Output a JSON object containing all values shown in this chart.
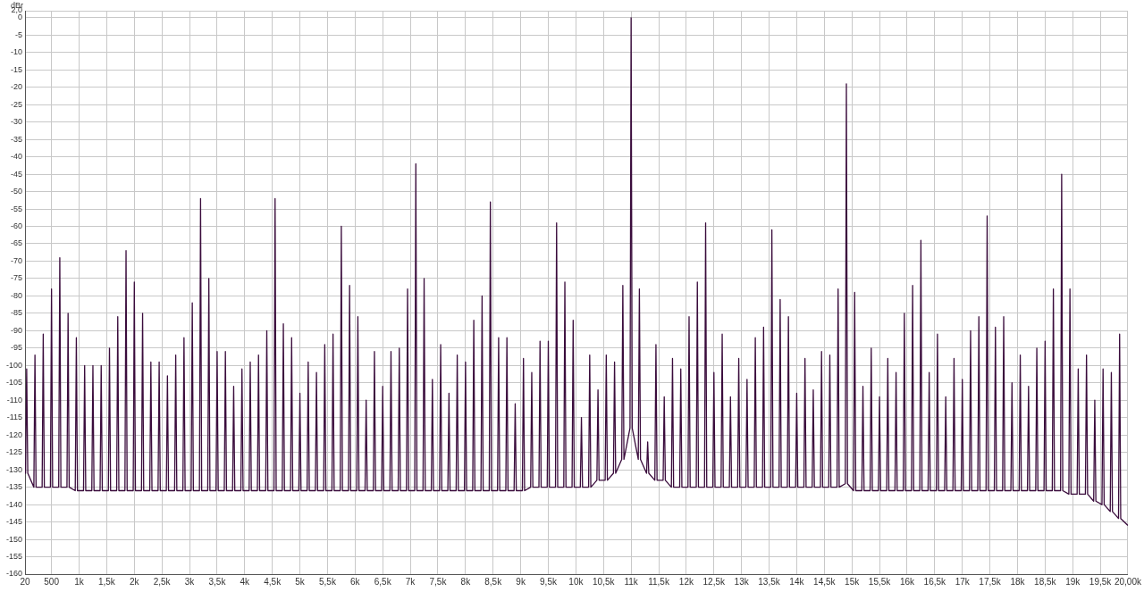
{
  "chart_data": {
    "type": "line",
    "ylabel": "dBr",
    "marker": "none",
    "grid": true,
    "legend": false,
    "xlim": [
      20,
      20000
    ],
    "ylim": [
      -160,
      2
    ],
    "xticks": [
      20,
      500,
      {
        "value": 1000,
        "label": "1k"
      },
      {
        "value": 1500,
        "label": "1,5k"
      },
      {
        "value": 2000,
        "label": "2k"
      },
      {
        "value": 2500,
        "label": "2,5k"
      },
      {
        "value": 3000,
        "label": "3k"
      },
      {
        "value": 3500,
        "label": "3,5k"
      },
      {
        "value": 4000,
        "label": "4k"
      },
      {
        "value": 4500,
        "label": "4,5k"
      },
      {
        "value": 5000,
        "label": "5k"
      },
      {
        "value": 5500,
        "label": "5,5k"
      },
      {
        "value": 6000,
        "label": "6k"
      },
      {
        "value": 6500,
        "label": "6,5k"
      },
      {
        "value": 7000,
        "label": "7k"
      },
      {
        "value": 7500,
        "label": "7,5k"
      },
      {
        "value": 8000,
        "label": "8k"
      },
      {
        "value": 8500,
        "label": "8,5k"
      },
      {
        "value": 9000,
        "label": "9k"
      },
      {
        "value": 9500,
        "label": "9,5k"
      },
      {
        "value": 10000,
        "label": "10k"
      },
      {
        "value": 10500,
        "label": "10,5k"
      },
      {
        "value": 11000,
        "label": "11k"
      },
      {
        "value": 11500,
        "label": "11,5k"
      },
      {
        "value": 12000,
        "label": "12k"
      },
      {
        "value": 12500,
        "label": "12,5k"
      },
      {
        "value": 13000,
        "label": "13k"
      },
      {
        "value": 13500,
        "label": "13,5k"
      },
      {
        "value": 14000,
        "label": "14k"
      },
      {
        "value": 14500,
        "label": "14,5k"
      },
      {
        "value": 15000,
        "label": "15k"
      },
      {
        "value": 15500,
        "label": "15,5k"
      },
      {
        "value": 16000,
        "label": "16k"
      },
      {
        "value": 16500,
        "label": "16,5k"
      },
      {
        "value": 17000,
        "label": "17k"
      },
      {
        "value": 17500,
        "label": "17,5k"
      },
      {
        "value": 18000,
        "label": "18k"
      },
      {
        "value": 18500,
        "label": "18,5k"
      },
      {
        "value": 19000,
        "label": "19k"
      },
      {
        "value": 19500,
        "label": "19,5k"
      },
      {
        "value": 20000,
        "label": "20,00k"
      }
    ],
    "yticks": [
      {
        "value": 2,
        "label": "2,0"
      },
      0,
      -5,
      -10,
      -15,
      -20,
      -25,
      -30,
      -35,
      -40,
      -45,
      -50,
      -55,
      -60,
      -65,
      -70,
      -75,
      -80,
      -85,
      -90,
      -95,
      -100,
      -105,
      -110,
      -115,
      -120,
      -125,
      -130,
      -135,
      -140,
      -145,
      -150,
      -155,
      -160
    ],
    "x": [
      20,
      30,
      50,
      70,
      180,
      200,
      220,
      330,
      350,
      370,
      480,
      500,
      520,
      630,
      650,
      670,
      780,
      800,
      820,
      930,
      950,
      970,
      1080,
      1100,
      1120,
      1230,
      1250,
      1270,
      1380,
      1400,
      1420,
      1530,
      1550,
      1570,
      1680,
      1700,
      1720,
      1830,
      1850,
      1870,
      1980,
      2000,
      2020,
      2130,
      2150,
      2170,
      2280,
      2300,
      2320,
      2430,
      2450,
      2470,
      2580,
      2600,
      2620,
      2730,
      2750,
      2770,
      2880,
      2900,
      2920,
      3030,
      3050,
      3070,
      3180,
      3200,
      3220,
      3330,
      3350,
      3370,
      3480,
      3500,
      3520,
      3630,
      3650,
      3670,
      3780,
      3800,
      3820,
      3930,
      3950,
      3970,
      4080,
      4100,
      4120,
      4230,
      4250,
      4270,
      4380,
      4400,
      4420,
      4530,
      4550,
      4570,
      4680,
      4700,
      4720,
      4830,
      4850,
      4870,
      4980,
      5000,
      5020,
      5130,
      5150,
      5170,
      5280,
      5300,
      5320,
      5430,
      5450,
      5470,
      5580,
      5600,
      5620,
      5730,
      5750,
      5770,
      5880,
      5900,
      5920,
      6030,
      6050,
      6070,
      6180,
      6200,
      6220,
      6330,
      6350,
      6370,
      6480,
      6500,
      6520,
      6630,
      6650,
      6670,
      6780,
      6800,
      6820,
      6930,
      6950,
      6970,
      7080,
      7100,
      7120,
      7230,
      7250,
      7270,
      7380,
      7400,
      7420,
      7530,
      7550,
      7570,
      7680,
      7700,
      7720,
      7830,
      7850,
      7870,
      7980,
      8000,
      8020,
      8130,
      8150,
      8170,
      8280,
      8300,
      8320,
      8430,
      8450,
      8470,
      8580,
      8600,
      8620,
      8730,
      8750,
      8770,
      8880,
      8900,
      8920,
      9030,
      9050,
      9070,
      9180,
      9200,
      9220,
      9330,
      9350,
      9370,
      9480,
      9500,
      9520,
      9630,
      9650,
      9670,
      9780,
      9800,
      9820,
      9930,
      9950,
      9970,
      10080,
      10100,
      10120,
      10230,
      10250,
      10270,
      10380,
      10400,
      10420,
      10530,
      10550,
      10570,
      10680,
      10700,
      10720,
      10830,
      10850,
      10870,
      10980,
      11000,
      11020,
      11130,
      11150,
      11170,
      11280,
      11300,
      11320,
      11430,
      11450,
      11470,
      11580,
      11600,
      11620,
      11730,
      11750,
      11770,
      11880,
      11900,
      11920,
      12030,
      12050,
      12070,
      12180,
      12200,
      12220,
      12330,
      12350,
      12370,
      12480,
      12500,
      12520,
      12630,
      12650,
      12670,
      12780,
      12800,
      12820,
      12930,
      12950,
      12970,
      13080,
      13100,
      13120,
      13230,
      13250,
      13270,
      13380,
      13400,
      13420,
      13530,
      13550,
      13570,
      13680,
      13700,
      13720,
      13830,
      13850,
      13870,
      13980,
      14000,
      14020,
      14130,
      14150,
      14170,
      14280,
      14300,
      14320,
      14430,
      14450,
      14470,
      14580,
      14600,
      14620,
      14730,
      14750,
      14770,
      14880,
      14900,
      14920,
      15030,
      15050,
      15070,
      15180,
      15200,
      15220,
      15330,
      15350,
      15370,
      15480,
      15500,
      15520,
      15630,
      15650,
      15670,
      15780,
      15800,
      15820,
      15930,
      15950,
      15970,
      16080,
      16100,
      16120,
      16230,
      16250,
      16270,
      16380,
      16400,
      16420,
      16530,
      16550,
      16570,
      16680,
      16700,
      16720,
      16830,
      16850,
      16870,
      16980,
      17000,
      17020,
      17130,
      17150,
      17170,
      17280,
      17300,
      17320,
      17430,
      17450,
      17470,
      17580,
      17600,
      17620,
      17730,
      17750,
      17770,
      17880,
      17900,
      17920,
      18030,
      18050,
      18070,
      18180,
      18200,
      18220,
      18330,
      18350,
      18370,
      18480,
      18500,
      18520,
      18630,
      18650,
      18670,
      18780,
      18800,
      18820,
      18930,
      18950,
      18970,
      19080,
      19100,
      19120,
      19230,
      19250,
      19270,
      19380,
      19400,
      19420,
      19530,
      19550,
      19570,
      19680,
      19700,
      19720,
      19830,
      19850,
      19870,
      20000
    ],
    "series": [
      {
        "color": "#3a0c3c",
        "values": [
          -128,
          -131,
          -101,
          -131,
          -135,
          -97,
          -135,
          -135,
          -91,
          -135,
          -135,
          -78,
          -135,
          -135,
          -69,
          -135,
          -135,
          -85,
          -135,
          -136,
          -92,
          -136,
          -136,
          -100,
          -136,
          -136,
          -100,
          -136,
          -136,
          -100,
          -136,
          -136,
          -95,
          -136,
          -136,
          -86,
          -136,
          -136,
          -67,
          -136,
          -136,
          -76,
          -136,
          -136,
          -85,
          -136,
          -136,
          -99,
          -136,
          -136,
          -99,
          -136,
          -136,
          -103,
          -136,
          -136,
          -97,
          -136,
          -136,
          -92,
          -136,
          -136,
          -82,
          -136,
          -136,
          -52,
          -136,
          -136,
          -75,
          -136,
          -136,
          -96,
          -136,
          -136,
          -96,
          -136,
          -136,
          -106,
          -136,
          -136,
          -101,
          -136,
          -136,
          -99,
          -136,
          -136,
          -97,
          -136,
          -136,
          -90,
          -136,
          -136,
          -52,
          -136,
          -136,
          -88,
          -136,
          -136,
          -92,
          -136,
          -136,
          -108,
          -136,
          -136,
          -99,
          -136,
          -136,
          -102,
          -136,
          -136,
          -94,
          -136,
          -136,
          -91,
          -136,
          -136,
          -60,
          -136,
          -136,
          -77,
          -136,
          -136,
          -86,
          -136,
          -136,
          -110,
          -136,
          -136,
          -96,
          -136,
          -136,
          -106,
          -136,
          -136,
          -96,
          -136,
          -136,
          -95,
          -136,
          -136,
          -78,
          -136,
          -136,
          -42,
          -136,
          -136,
          -75,
          -136,
          -136,
          -104,
          -136,
          -136,
          -94,
          -136,
          -136,
          -108,
          -136,
          -136,
          -97,
          -136,
          -136,
          -99,
          -136,
          -136,
          -87,
          -136,
          -136,
          -80,
          -136,
          -136,
          -53,
          -136,
          -136,
          -92,
          -136,
          -136,
          -92,
          -136,
          -136,
          -111,
          -136,
          -136,
          -98,
          -136,
          -135,
          -102,
          -135,
          -135,
          -93,
          -135,
          -135,
          -93,
          -135,
          -135,
          -59,
          -135,
          -135,
          -76,
          -135,
          -135,
          -87,
          -135,
          -135,
          -115,
          -135,
          -135,
          -97,
          -135,
          -133,
          -107,
          -133,
          -133,
          -97,
          -133,
          -131,
          -99,
          -131,
          -127,
          -77,
          -127,
          -118,
          0,
          -118,
          -127,
          -78,
          -127,
          -131,
          -122,
          -131,
          -133,
          -94,
          -133,
          -133,
          -109,
          -133,
          -135,
          -98,
          -135,
          -135,
          -101,
          -135,
          -135,
          -86,
          -135,
          -135,
          -76,
          -135,
          -135,
          -59,
          -135,
          -135,
          -102,
          -135,
          -135,
          -91,
          -135,
          -135,
          -109,
          -135,
          -135,
          -98,
          -135,
          -135,
          -104,
          -135,
          -135,
          -92,
          -135,
          -135,
          -89,
          -135,
          -135,
          -61,
          -135,
          -135,
          -81,
          -135,
          -135,
          -86,
          -135,
          -135,
          -108,
          -135,
          -135,
          -98,
          -135,
          -135,
          -107,
          -135,
          -135,
          -96,
          -135,
          -135,
          -97,
          -135,
          -135,
          -78,
          -135,
          -134,
          -19,
          -134,
          -136,
          -79,
          -136,
          -136,
          -106,
          -136,
          -136,
          -95,
          -136,
          -136,
          -109,
          -136,
          -136,
          -98,
          -136,
          -136,
          -102,
          -136,
          -136,
          -85,
          -136,
          -136,
          -77,
          -136,
          -136,
          -64,
          -136,
          -136,
          -102,
          -136,
          -136,
          -91,
          -136,
          -136,
          -109,
          -136,
          -136,
          -98,
          -136,
          -136,
          -104,
          -136,
          -136,
          -90,
          -136,
          -136,
          -86,
          -136,
          -136,
          -57,
          -136,
          -136,
          -89,
          -136,
          -136,
          -86,
          -136,
          -136,
          -105,
          -136,
          -136,
          -97,
          -136,
          -136,
          -106,
          -136,
          -136,
          -95,
          -136,
          -136,
          -93,
          -136,
          -136,
          -78,
          -136,
          -136,
          -45,
          -136,
          -137,
          -78,
          -137,
          -137,
          -101,
          -137,
          -137,
          -97,
          -137,
          -139,
          -110,
          -139,
          -140,
          -101,
          -140,
          -142,
          -102,
          -142,
          -144,
          -91,
          -144,
          -146
        ]
      }
    ]
  }
}
